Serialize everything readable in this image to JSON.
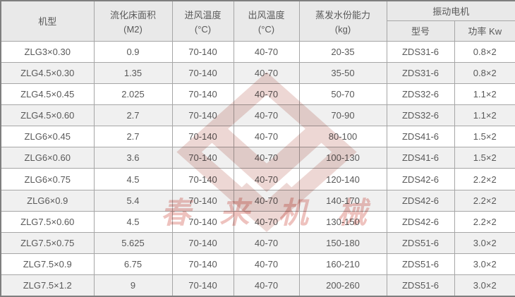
{
  "table": {
    "headers": {
      "model": {
        "line1": "机型",
        "line2": ""
      },
      "area": {
        "line1": "流化床面积",
        "line2": "(M2)"
      },
      "inlet": {
        "line1": "进风温度",
        "line2": "(°C)"
      },
      "outlet": {
        "line1": "出风温度",
        "line2": "(°C)"
      },
      "evap": {
        "line1": "蒸发水份能力",
        "line2": "(kg)"
      },
      "motor": {
        "label": "振动电机",
        "sub_model": "型号",
        "sub_power": "功率 Kw"
      }
    },
    "rows": [
      [
        "ZLG3×0.30",
        "0.9",
        "70-140",
        "40-70",
        "20-35",
        "ZDS31-6",
        "0.8×2"
      ],
      [
        "ZLG4.5×0.30",
        "1.35",
        "70-140",
        "40-70",
        "35-50",
        "ZDS31-6",
        "0.8×2"
      ],
      [
        "ZLG4.5×0.45",
        "2.025",
        "70-140",
        "40-70",
        "50-70",
        "ZDS32-6",
        "1.1×2"
      ],
      [
        "ZLG4.5×0.60",
        "2.7",
        "70-140",
        "40-70",
        "70-90",
        "ZDS32-6",
        "1.1×2"
      ],
      [
        "ZLG6×0.45",
        "2.7",
        "70-140",
        "40-70",
        "80-100",
        "ZDS41-6",
        "1.5×2"
      ],
      [
        "ZLG6×0.60",
        "3.6",
        "70-140",
        "40-70",
        "100-130",
        "ZDS41-6",
        "1.5×2"
      ],
      [
        "ZLG6×0.75",
        "4.5",
        "70-140",
        "40-70",
        "120-140",
        "ZDS42-6",
        "2.2×2"
      ],
      [
        "ZLG6×0.9",
        "5.4",
        "70-140",
        "40-70",
        "140-170",
        "ZDS42-6",
        "2.2×2"
      ],
      [
        "ZLG7.5×0.60",
        "4.5",
        "70-140",
        "40-70",
        "130-150",
        "ZDS42-6",
        "2.2×2"
      ],
      [
        "ZLG7.5×0.75",
        "5.625",
        "70-140",
        "40-70",
        "150-180",
        "ZDS51-6",
        "3.0×2"
      ],
      [
        "ZLG7.5×0.9",
        "6.75",
        "70-140",
        "40-70",
        "160-210",
        "ZDS51-6",
        "3.0×2"
      ],
      [
        "ZLG7.5×1.2",
        "9",
        "70-140",
        "40-70",
        "200-260",
        "ZDS51-6",
        "3.0×2"
      ]
    ]
  },
  "watermark": {
    "text": "春来机械",
    "logo": "chevron-diamond-logo",
    "logo_color": "#dcafa9",
    "text_color": "#e08f88"
  },
  "colors": {
    "header_bg": "#e9e9e9",
    "stripe_bg": "#f0f0f0",
    "row_bg": "#ffffff",
    "grid_border": "#a6a6a6",
    "outer_border": "#7f7f7f",
    "text": "#595959"
  }
}
